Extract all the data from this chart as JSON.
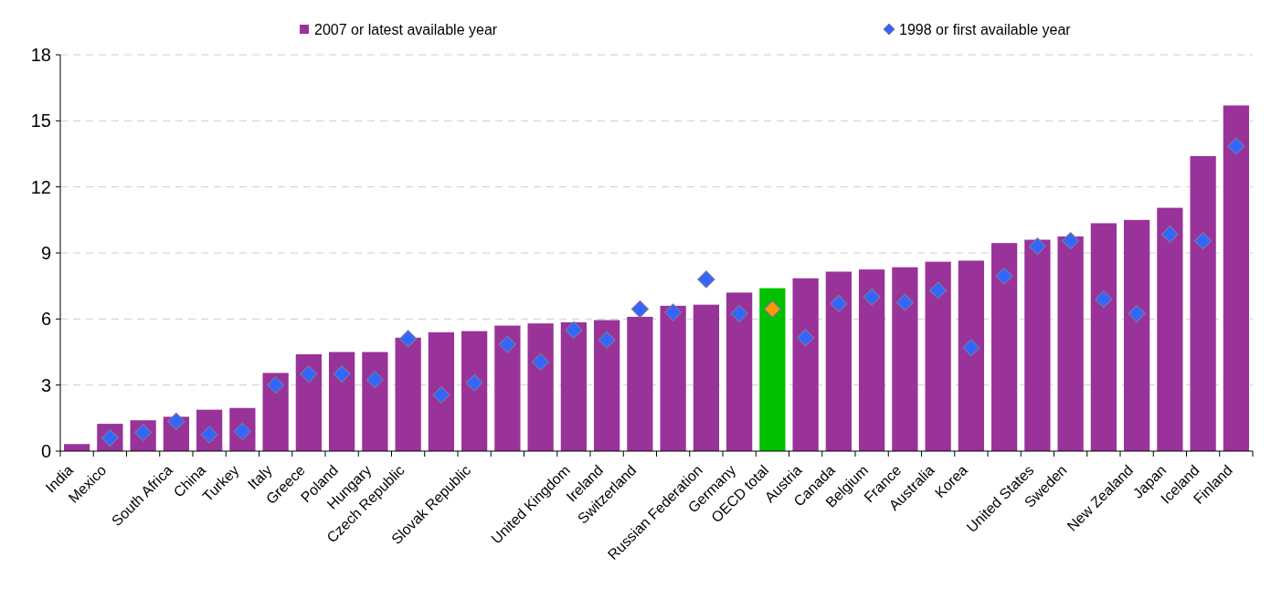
{
  "chart_data": {
    "type": "bar",
    "categories": [
      "India",
      "Mexico",
      null,
      "South Africa",
      "China",
      "Turkey",
      "Italy",
      "Greece",
      "Poland",
      "Hungary",
      "Czech Republic",
      null,
      "Slovak Republic",
      null,
      null,
      "United Kingdom",
      "Ireland",
      "Switzerland",
      null,
      "Russian Federation",
      "Germany",
      "OECD total",
      "Austria",
      "Canada",
      "Belgium",
      "France",
      "Australia",
      "Korea",
      null,
      "United States",
      "Sweden",
      null,
      "New Zealand",
      "Japan",
      "Iceland",
      "Finland"
    ],
    "series": [
      {
        "name": "2007 or latest available year",
        "color": "#993399",
        "colors": [
          "#993399",
          "#993399",
          "#993399",
          "#993399",
          "#993399",
          "#993399",
          "#993399",
          "#993399",
          "#993399",
          "#993399",
          "#993399",
          "#993399",
          "#993399",
          "#993399",
          "#993399",
          "#993399",
          "#993399",
          "#993399",
          "#993399",
          "#993399",
          "#993399",
          "#00c000",
          "#993399",
          "#993399",
          "#993399",
          "#993399",
          "#993399",
          "#993399",
          "#993399",
          "#993399",
          "#993399",
          "#993399",
          "#993399",
          "#993399",
          "#993399",
          "#993399"
        ],
        "values": [
          0.32,
          1.24,
          1.4,
          1.56,
          1.88,
          1.96,
          3.55,
          4.4,
          4.5,
          4.5,
          5.15,
          5.4,
          5.45,
          5.7,
          5.8,
          5.85,
          5.95,
          6.1,
          6.6,
          6.65,
          7.2,
          7.4,
          7.85,
          8.15,
          8.25,
          8.35,
          8.6,
          8.65,
          9.45,
          9.6,
          9.75,
          10.35,
          10.5,
          11.05,
          13.4,
          15.7
        ]
      },
      {
        "name": "1998 or first available year",
        "type": "scatter",
        "marker": "diamond",
        "color": "#3366ff",
        "colors": [
          null,
          "#3366ff",
          "#3366ff",
          "#3366ff",
          "#3366ff",
          "#3366ff",
          "#3366ff",
          "#3366ff",
          "#3366ff",
          "#3366ff",
          "#3366ff",
          "#3366ff",
          "#3366ff",
          "#3366ff",
          "#3366ff",
          "#3366ff",
          "#3366ff",
          "#3366ff",
          "#3366ff",
          "#3366ff",
          "#3366ff",
          "#ff9900",
          "#3366ff",
          "#3366ff",
          "#3366ff",
          "#3366ff",
          "#3366ff",
          "#3366ff",
          "#3366ff",
          "#3366ff",
          "#3366ff",
          "#3366ff",
          "#3366ff",
          "#3366ff",
          "#3366ff",
          "#3366ff"
        ],
        "values": [
          null,
          0.6,
          0.85,
          1.35,
          0.75,
          0.9,
          3.0,
          3.5,
          3.5,
          3.25,
          5.1,
          2.55,
          3.1,
          4.85,
          4.05,
          5.5,
          5.05,
          6.45,
          6.3,
          7.8,
          6.25,
          6.45,
          5.15,
          6.7,
          7.0,
          6.75,
          7.3,
          4.7,
          7.95,
          9.3,
          9.55,
          6.9,
          6.25,
          9.85,
          9.55,
          13.85
        ]
      }
    ],
    "ylim": [
      0,
      18
    ],
    "yticks": [
      0,
      3,
      6,
      9,
      12,
      15,
      18
    ],
    "grid": "y",
    "legend": "top"
  }
}
